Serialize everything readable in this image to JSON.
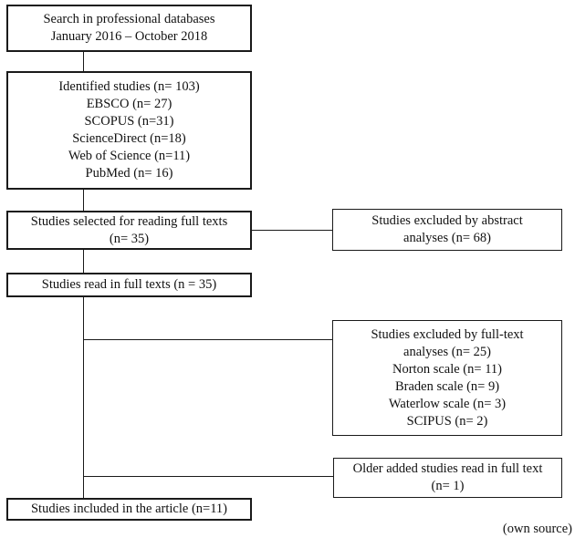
{
  "boxes": {
    "search": {
      "lines": [
        "Search in professional databases",
        "January 2016 – October 2018"
      ]
    },
    "identified": {
      "lines": [
        "Identified studies (n= 103)",
        "EBSCO (n= 27)",
        "SCOPUS (n=31)",
        "ScienceDirect (n=18)",
        "Web of Science (n=11)",
        "PubMed (n= 16)"
      ]
    },
    "selected": {
      "lines": [
        "Studies selected for reading full texts",
        "(n= 35)"
      ]
    },
    "excluded_abstract": {
      "lines": [
        "Studies excluded by abstract",
        "analyses (n= 68)"
      ]
    },
    "read_full": {
      "lines": [
        "Studies read in full texts (n = 35)"
      ]
    },
    "excluded_fulltext": {
      "lines": [
        "Studies excluded by full-text",
        "analyses (n= 25)",
        "Norton scale (n= 11)",
        "Braden scale (n= 9)",
        "Waterlow scale (n= 3)",
        "SCIPUS (n= 2)"
      ]
    },
    "older_added": {
      "lines": [
        "Older added studies read in full text",
        "(n= 1)"
      ]
    },
    "included": {
      "lines": [
        "Studies included in the article (n=11)"
      ]
    }
  },
  "source_note": "(own source)"
}
